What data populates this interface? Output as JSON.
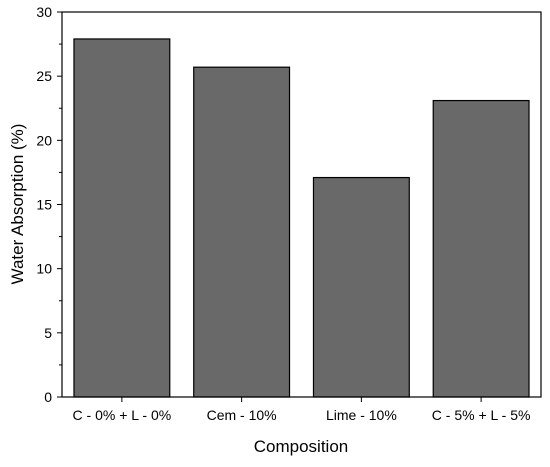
{
  "chart_data": {
    "type": "bar",
    "categories": [
      "C - 0% + L - 0%",
      "Cem - 10%",
      "Lime - 10%",
      "C - 5% + L - 5%"
    ],
    "values": [
      27.9,
      25.7,
      17.1,
      23.1
    ],
    "title": "",
    "xlabel": "Composition",
    "ylabel": "Water Absorption (%)",
    "ylim": [
      0,
      30
    ],
    "yticks": [
      0,
      5,
      10,
      15,
      20,
      25,
      30
    ],
    "y_minor_step": 2.5,
    "grid": false,
    "legend": "none",
    "bar_color": "#696969",
    "bar_edge_color": "#000000",
    "axis_color": "#000000"
  }
}
